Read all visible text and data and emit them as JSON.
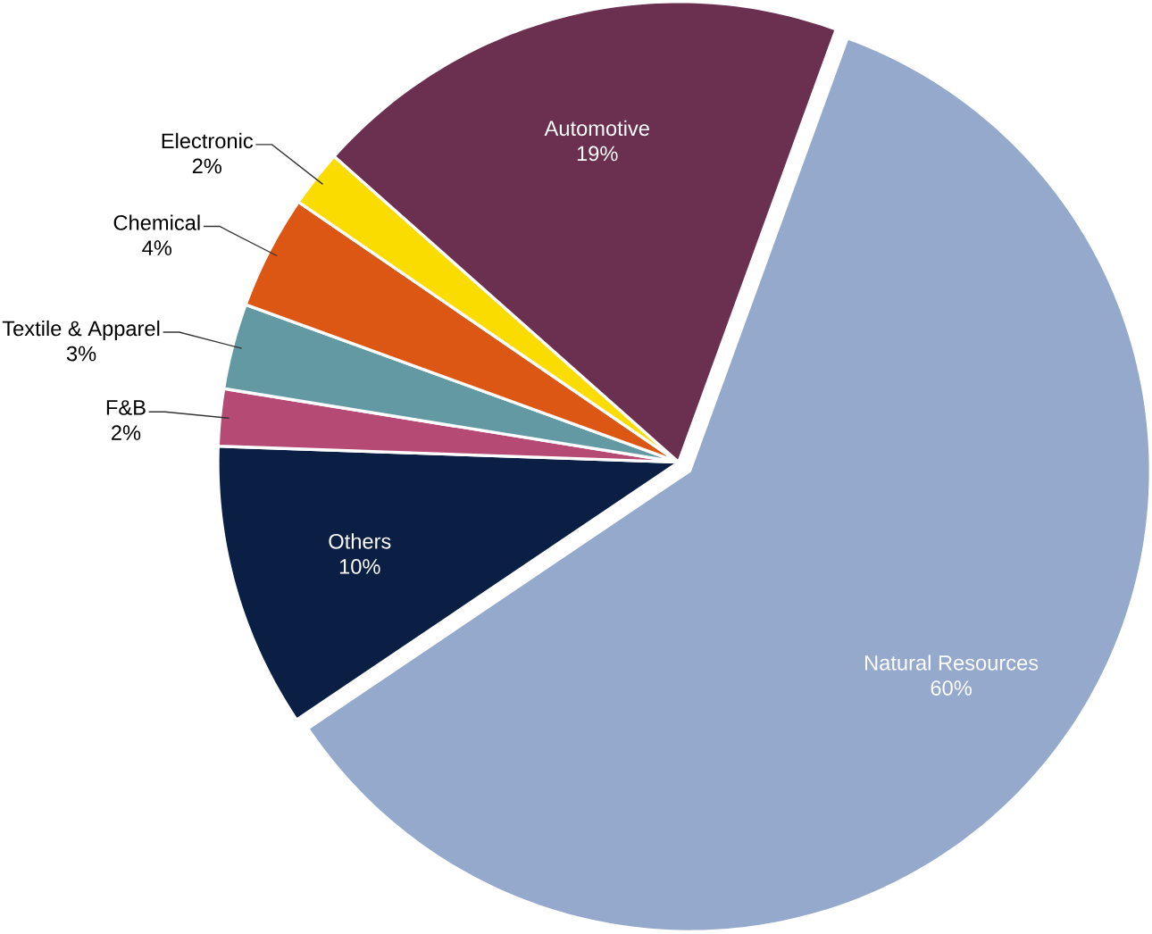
{
  "chart_data": {
    "type": "pie",
    "categories": [
      "Natural Resources",
      "Others",
      "F&B",
      "Textile & Apparel",
      "Chemical",
      "Electronic",
      "Automotive"
    ],
    "values": [
      60,
      10,
      2,
      3,
      4,
      2,
      19
    ],
    "value_labels": [
      "60%",
      "10%",
      "2%",
      "3%",
      "4%",
      "2%",
      "19%"
    ],
    "colors": [
      "#95a9cd",
      "#0b1f45",
      "#b54a74",
      "#6399a2",
      "#dc5714",
      "#fbdc00",
      "#6b2f4f"
    ]
  }
}
